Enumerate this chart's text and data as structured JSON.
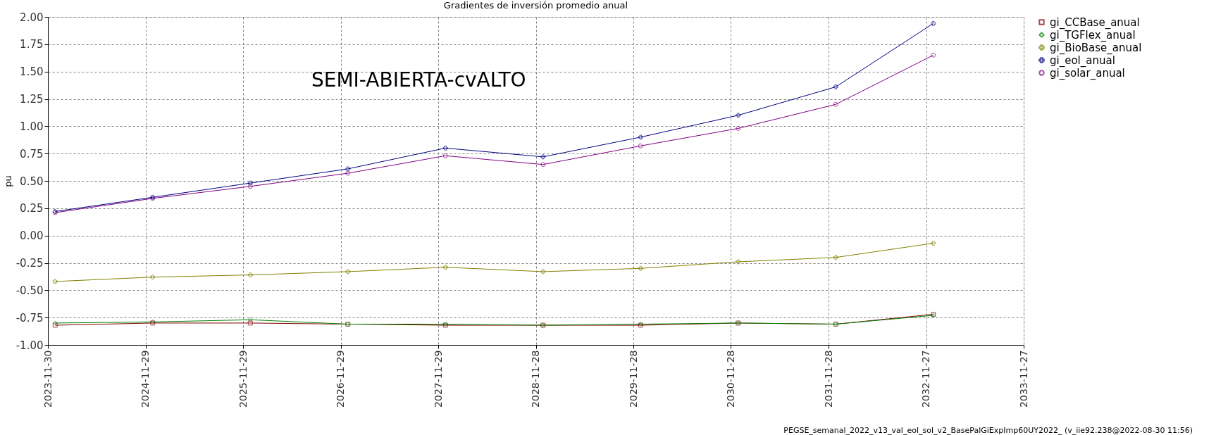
{
  "chart_data": {
    "type": "line",
    "title": "Gradientes de inversión promedio anual",
    "ylabel": "pu",
    "x": [
      "2023-12-27",
      "2024-12-26",
      "2025-12-26",
      "2026-12-26",
      "2027-12-26",
      "2028-12-25",
      "2029-12-25",
      "2030-12-25",
      "2031-12-25",
      "2032-12-24"
    ],
    "series": [
      {
        "name": "gi_CCBase_anual",
        "color": "#800000",
        "marker": "square",
        "values": [
          -0.82,
          -0.8,
          -0.8,
          -0.81,
          -0.82,
          -0.82,
          -0.82,
          -0.8,
          -0.81,
          -0.72
        ]
      },
      {
        "name": "gi_TGFlex_anual",
        "color": "#008000",
        "marker": "diamond",
        "values": [
          -0.8,
          -0.79,
          -0.77,
          -0.81,
          -0.81,
          -0.82,
          -0.81,
          -0.8,
          -0.81,
          -0.73
        ]
      },
      {
        "name": "gi_BioBase_anual",
        "color": "#808000",
        "marker": "cross",
        "values": [
          -0.42,
          -0.38,
          -0.36,
          -0.33,
          -0.29,
          -0.33,
          -0.3,
          -0.24,
          -0.2,
          -0.07
        ]
      },
      {
        "name": "gi_eol_anual",
        "color": "#000080",
        "marker": "cross",
        "values": [
          0.22,
          0.35,
          0.48,
          0.61,
          0.8,
          0.72,
          0.9,
          1.1,
          1.36,
          1.94
        ]
      },
      {
        "name": "gi_solar_anual",
        "color": "#800080",
        "marker": "circle",
        "values": [
          0.21,
          0.34,
          0.45,
          0.57,
          0.73,
          0.65,
          0.82,
          0.98,
          1.2,
          1.65
        ]
      }
    ],
    "xlim": [
      "2023-11-30",
      "2033-11-27"
    ],
    "xticks": [
      "2023-11-30",
      "2024-11-29",
      "2025-11-29",
      "2026-11-29",
      "2027-11-29",
      "2028-11-28",
      "2029-11-28",
      "2030-11-28",
      "2031-11-28",
      "2032-11-27",
      "2033-11-27"
    ],
    "ylim": [
      -1.0,
      2.0
    ],
    "yticks": [
      {
        "value": -1.0,
        "label": "-1.00"
      },
      {
        "value": -0.75,
        "label": "-0.75"
      },
      {
        "value": -0.5,
        "label": "-0.50"
      },
      {
        "value": -0.25,
        "label": "-0.25"
      },
      {
        "value": 0,
        "label": "0.00"
      },
      {
        "value": 0.25,
        "label": "0.25"
      },
      {
        "value": 0.5,
        "label": "0.50"
      },
      {
        "value": 0.75,
        "label": "0.75"
      },
      {
        "value": 1.0,
        "label": "1.00"
      },
      {
        "value": 1.25,
        "label": "1.25"
      },
      {
        "value": 1.5,
        "label": "1.50"
      },
      {
        "value": 1.75,
        "label": "1.75"
      },
      {
        "value": 2.0,
        "label": "2.00"
      }
    ],
    "grid": true,
    "legend": "top right",
    "line_style": "solid",
    "annotations": [
      "SEMI-ABIERTA-cvALTO",
      "PEGSE_semanal_2022_v13_val_eol_sol_v2_BasePalGiExpImp60UY2022_ (v_iie92.238@2022-08-30 11:56)"
    ]
  }
}
